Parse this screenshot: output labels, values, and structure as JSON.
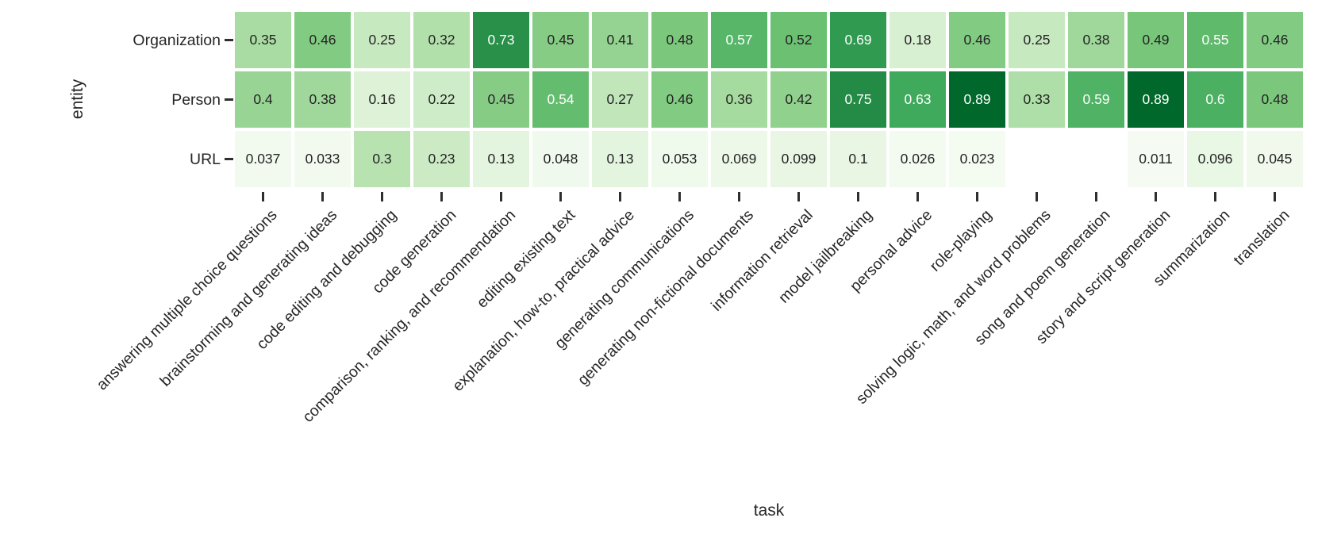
{
  "chart_data": {
    "type": "heatmap",
    "title": "",
    "xlabel": "task",
    "ylabel": "entity",
    "colormap": "Greens",
    "vmin": 0,
    "vmax": 1,
    "legend": "none",
    "grid": false,
    "rows": [
      "Organization",
      "Person",
      "URL"
    ],
    "categories": [
      "answering multiple choice questions",
      "brainstorming and generating ideas",
      "code editing and debugging",
      "code generation",
      "comparison, ranking, and recommendation",
      "editing existing text",
      "explanation, how-to, practical advice",
      "generating communications",
      "generating non-fictional documents",
      "information retrieval",
      "model jailbreaking",
      "personal advice",
      "role-playing",
      "solving logic, math, and word problems",
      "song and poem generation",
      "story and script generation",
      "summarization",
      "translation"
    ],
    "series": [
      {
        "name": "Organization",
        "values": [
          0.35,
          0.46,
          0.25,
          0.32,
          0.73,
          0.45,
          0.41,
          0.48,
          0.57,
          0.52,
          0.69,
          0.18,
          0.46,
          0.25,
          0.38,
          0.49,
          0.55,
          0.46
        ],
        "labels": [
          "0.35",
          "0.46",
          "0.25",
          "0.32",
          "0.73",
          "0.45",
          "0.41",
          "0.48",
          "0.57",
          "0.52",
          "0.69",
          "0.18",
          "0.46",
          "0.25",
          "0.38",
          "0.49",
          "0.55",
          "0.46"
        ]
      },
      {
        "name": "Person",
        "values": [
          0.4,
          0.38,
          0.16,
          0.22,
          0.45,
          0.54,
          0.27,
          0.46,
          0.36,
          0.42,
          0.75,
          0.63,
          0.89,
          0.33,
          0.59,
          0.89,
          0.6,
          0.48
        ],
        "labels": [
          "0.4",
          "0.38",
          "0.16",
          "0.22",
          "0.45",
          "0.54",
          "0.27",
          "0.46",
          "0.36",
          "0.42",
          "0.75",
          "0.63",
          "0.89",
          "0.33",
          "0.59",
          "0.89",
          "0.6",
          "0.48"
        ]
      },
      {
        "name": "URL",
        "values": [
          0.037,
          0.033,
          0.3,
          0.23,
          0.13,
          0.048,
          0.13,
          0.053,
          0.069,
          0.099,
          0.1,
          0.026,
          0.023,
          null,
          null,
          0.011,
          0.096,
          0.045
        ],
        "labels": [
          "0.037",
          "0.033",
          "0.3",
          "0.23",
          "0.13",
          "0.048",
          "0.13",
          "0.053",
          "0.069",
          "0.099",
          "0.1",
          "0.026",
          "0.023",
          "",
          "",
          "0.011",
          "0.096",
          "0.045"
        ]
      }
    ],
    "colors": {
      "colormap_stops": [
        "#f7fcf5",
        "#e5f5e0",
        "#c7e9c0",
        "#a1d99b",
        "#74c476",
        "#41ab5d",
        "#238b45",
        "#006d2c",
        "#00441b"
      ],
      "annotation_dark_text": "#242424",
      "annotation_light_text": "#ffffff",
      "tick_color": "#2e2e2e",
      "label_color": "#262626",
      "background": "#ffffff",
      "white_text_threshold": 0.53
    }
  }
}
